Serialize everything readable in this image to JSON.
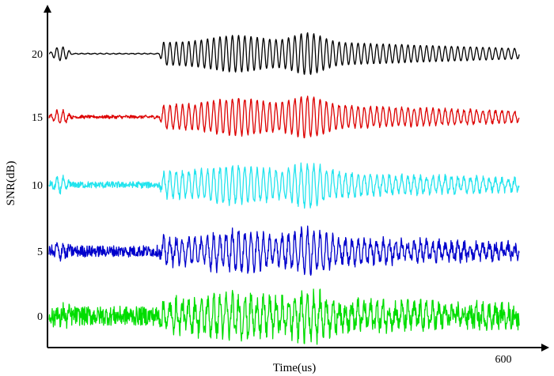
{
  "chart_data": {
    "type": "line",
    "title": "",
    "xlabel": "Time(us)",
    "ylabel": "SNR(dB)",
    "xlim": [
      0,
      600
    ],
    "x_tick_labels": [
      {
        "value": 600,
        "label": "600"
      }
    ],
    "y_tick_labels": [
      "0",
      "5",
      "10",
      "15",
      "20"
    ],
    "grid": false,
    "legend": "none",
    "series": [
      {
        "offset_db": 20,
        "color": "#000000",
        "noise_level": 0.02
      },
      {
        "offset_db": 15,
        "color": "#dd0000",
        "noise_level": 0.12
      },
      {
        "offset_db": 10,
        "color": "#22e4ee",
        "noise_level": 0.25
      },
      {
        "offset_db": 5,
        "color": "#0000cc",
        "noise_level": 0.45
      },
      {
        "offset_db": 0,
        "color": "#00dd00",
        "noise_level": 0.75
      }
    ],
    "signal": {
      "x_range": [
        0,
        600
      ],
      "burst_start": 140,
      "burst_peak": 330,
      "early_wiggle_end": 30,
      "period": 8
    }
  }
}
